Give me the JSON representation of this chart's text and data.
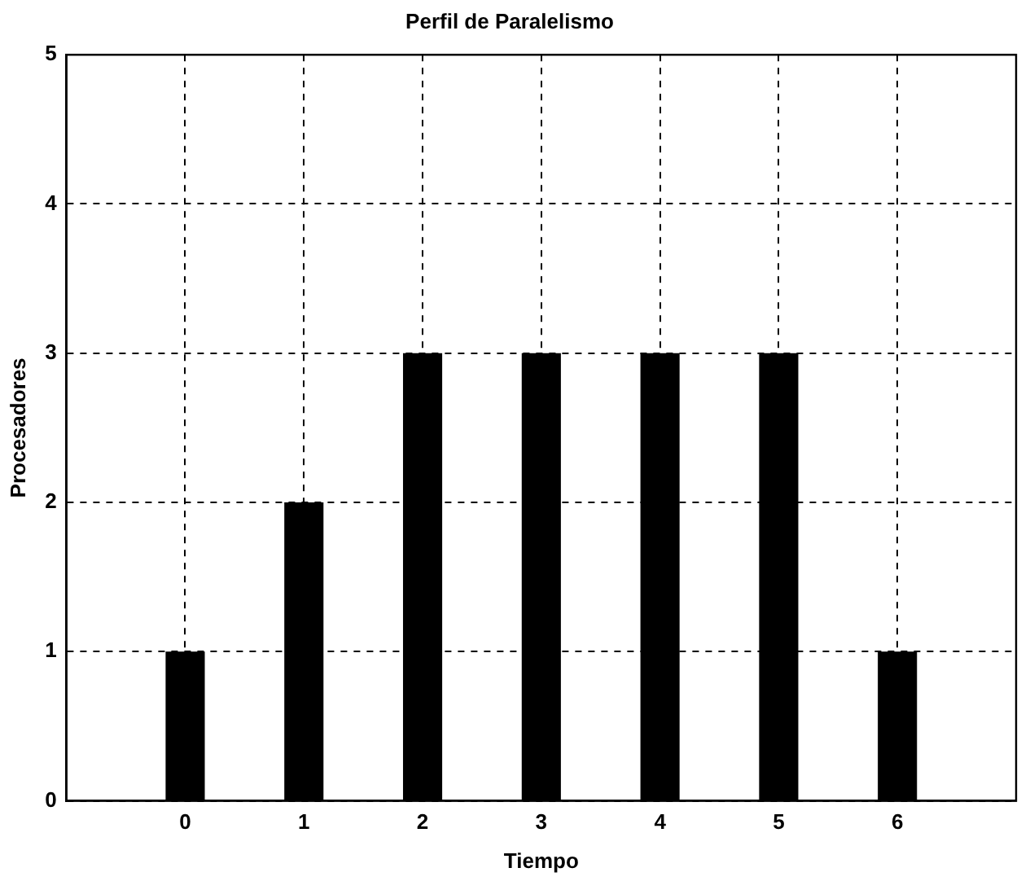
{
  "chart_data": {
    "type": "bar",
    "title": "Perfil de Paralelismo",
    "xlabel": "Tiempo",
    "ylabel": "Procesadores",
    "x": [
      0,
      1,
      2,
      3,
      4,
      5,
      6
    ],
    "values": [
      1,
      2,
      3,
      3,
      3,
      3,
      1
    ],
    "color": "#000000",
    "xlim": [
      -1,
      7
    ],
    "xticks": [
      0,
      1,
      2,
      3,
      4,
      5,
      6
    ],
    "ylim": [
      0,
      5
    ],
    "yticks": [
      0,
      1,
      2,
      3,
      4,
      5
    ],
    "grid": true,
    "legend": false
  }
}
